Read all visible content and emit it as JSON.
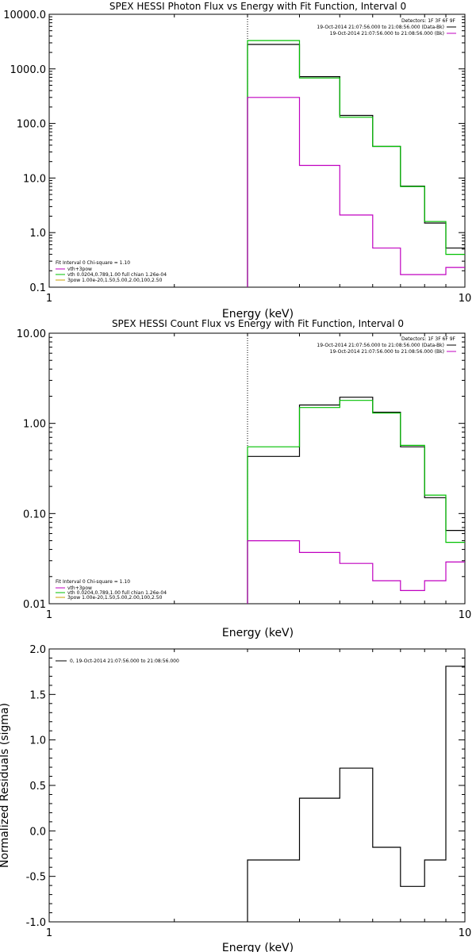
{
  "colors": {
    "data": "#000000",
    "vth_3pow": "#c000c0",
    "vth_pow": "#00c000",
    "spectra_3pow": "#c8a000",
    "axis": "#000000"
  },
  "chart_data": [
    {
      "type": "line",
      "title": "SPEX HESSI Photon Flux vs Energy with Fit Function, Interval 0",
      "xlabel": "Energy (keV)",
      "ylabel": "",
      "xscale": "log",
      "yscale": "log",
      "xlim": [
        1,
        10
      ],
      "ylim": [
        0.1,
        10000
      ],
      "x_ticks": [
        "1",
        "10"
      ],
      "y_ticks": [
        "10000.0",
        "1000.0",
        "100.0",
        "10.0",
        "1.0",
        "0.1"
      ],
      "dotted_vline_x": 3.0,
      "legend_topright": {
        "detectors": "Detectors: 1F 3F 6F 9F",
        "lines": [
          {
            "text": "19-Oct-2014 21:07:56.000 to 21:08:56.000 (Data-Bk)",
            "color": "#000000"
          },
          {
            "text": "19-Oct-2014 21:07:56.000 to 21:08:56.000 (Bk)",
            "color": "#c000c0"
          }
        ]
      },
      "legend_bottomleft": {
        "header": "Fit Interval  0    Chi-square = 1.10",
        "lines": [
          {
            "text": "vth+3pow",
            "color": "#c000c0"
          },
          {
            "text": "vth 0.0204,0.789,1.00  full chian 1.26e-04",
            "color": "#00c000"
          },
          {
            "text": "3pow 1.00e-20,1.50,5.00,2.00,100,2.50",
            "color": "#c8a000"
          }
        ]
      },
      "bin_edges": [
        3.0,
        4.0,
        5.0,
        6.0,
        7.0,
        8.0,
        9.0,
        10.0
      ],
      "series": [
        {
          "key": "data",
          "values": [
            2800,
            720,
            140,
            38,
            7.1,
            1.5,
            0.52
          ]
        },
        {
          "key": "vth_pow",
          "values": [
            3300,
            680,
            130,
            38,
            7.0,
            1.6,
            0.4
          ]
        },
        {
          "key": "bk",
          "values": [
            300,
            17,
            2.1,
            0.52,
            0.17,
            0.17,
            0.23
          ]
        }
      ]
    },
    {
      "type": "line",
      "title": "SPEX HESSI Count Flux vs Energy with Fit Function, Interval 0",
      "xlabel": "Energy (keV)",
      "ylabel": "",
      "xscale": "log",
      "yscale": "log",
      "xlim": [
        1,
        10
      ],
      "ylim": [
        0.01,
        10
      ],
      "x_ticks": [
        "1",
        "10"
      ],
      "y_ticks": [
        "10.00",
        "1.00",
        "0.10",
        "0.01"
      ],
      "dotted_vline_x": 3.0,
      "legend_topright": {
        "detectors": "Detectors: 1F 3F 6F 9F",
        "lines": [
          {
            "text": "19-Oct-2014 21:07:56.000 to 21:08:56.000 (Data-Bk)",
            "color": "#000000"
          },
          {
            "text": "19-Oct-2014 21:07:56.000 to 21:08:56.000 (Bk)",
            "color": "#c000c0"
          }
        ]
      },
      "legend_bottomleft": {
        "header": "Fit Interval  0    Chi-square = 1.10",
        "lines": [
          {
            "text": "vth+3pow",
            "color": "#c000c0"
          },
          {
            "text": "vth 0.0204,0.789,1.00  full chian 1.26e-04",
            "color": "#00c000"
          },
          {
            "text": "3pow 1.00e-20,1.50,5.00,2.00,100,2.50",
            "color": "#c8a000"
          }
        ]
      },
      "bin_edges": [
        3.0,
        4.0,
        5.0,
        6.0,
        7.0,
        8.0,
        9.0,
        10.0
      ],
      "series": [
        {
          "key": "data",
          "values": [
            0.43,
            1.6,
            1.95,
            1.33,
            0.55,
            0.15,
            0.065
          ]
        },
        {
          "key": "vth_pow",
          "values": [
            0.55,
            1.5,
            1.8,
            1.3,
            0.57,
            0.16,
            0.048
          ]
        },
        {
          "key": "bk",
          "values": [
            0.05,
            0.037,
            0.028,
            0.018,
            0.014,
            0.018,
            0.029
          ]
        }
      ]
    },
    {
      "type": "line",
      "title": "",
      "xlabel": "Energy (keV)",
      "ylabel": "Normalized Residuals (sigma)",
      "xscale": "log",
      "yscale": "linear",
      "xlim": [
        1,
        10
      ],
      "ylim": [
        -1.0,
        2.0
      ],
      "x_ticks": [
        "1",
        "10"
      ],
      "y_ticks": [
        "2.0",
        "1.5",
        "1.0",
        "0.5",
        "0.0",
        "-0.5",
        "-1.0"
      ],
      "legend_topleft": {
        "lines": [
          {
            "text": "0, 19-Oct-2014 21:07:56.000 to 21:08:56.000",
            "color": "#000000"
          }
        ]
      },
      "bin_edges": [
        3.0,
        4.0,
        5.0,
        6.0,
        7.0,
        8.0,
        9.0,
        10.0
      ],
      "series": [
        {
          "key": "residuals",
          "values": [
            -0.32,
            0.36,
            0.69,
            -0.18,
            -0.61,
            -0.32,
            1.81
          ]
        }
      ]
    }
  ]
}
